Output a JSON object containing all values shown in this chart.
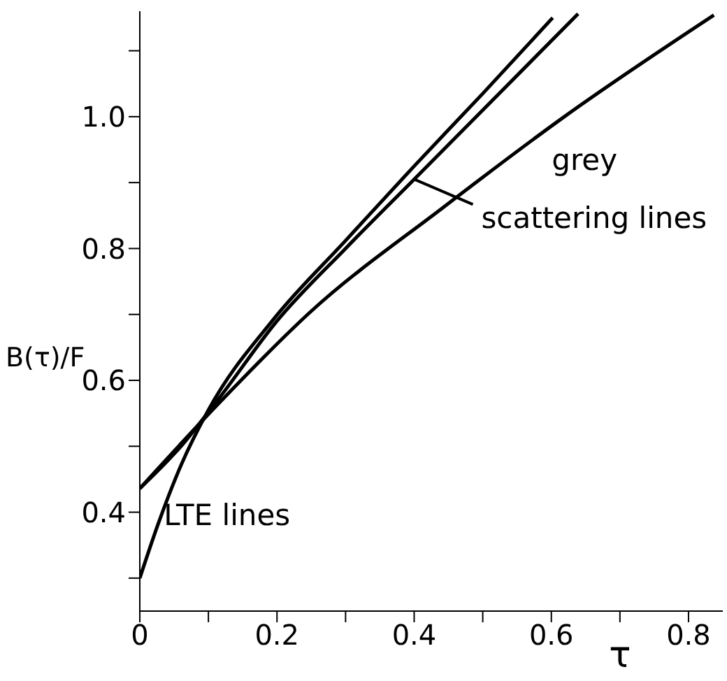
{
  "chart_data": {
    "type": "line",
    "xlabel": "τ",
    "ylabel": "B(τ)/F",
    "xlim": [
      0,
      0.85
    ],
    "ylim": [
      0.25,
      1.16
    ],
    "xticks": [
      0,
      {
        "value": 0.1,
        "label": null
      },
      0.2,
      {
        "value": 0.3,
        "label": null
      },
      0.4,
      {
        "value": 0.5,
        "label": null
      },
      0.6,
      {
        "value": 0.7,
        "label": null
      },
      0.8
    ],
    "yticks": [
      {
        "value": 0.3,
        "label": null
      },
      0.4,
      {
        "value": 0.5,
        "label": null
      },
      0.6,
      {
        "value": 0.7,
        "label": null
      },
      0.8,
      {
        "value": 0.9,
        "label": null
      },
      {
        "value": 1.0,
        "label": "1.0"
      },
      {
        "value": 1.1,
        "label": null
      }
    ],
    "grid": false,
    "marker": "none",
    "line_style": "solid",
    "annotations": [
      {
        "text": "grey",
        "x": 0.619,
        "y": 1.0
      },
      {
        "text": "scattering lines",
        "x": 0.4,
        "y": 0.905
      },
      {
        "text": "LTE lines",
        "x": 0.035,
        "y": 0.38
      }
    ],
    "series": [
      {
        "color": "#000000",
        "x": [
          0,
          0.115,
          0.25,
          0.442,
          0.619,
          0.837
        ],
        "values": [
          0.436,
          0.565,
          0.705,
          0.862,
          1.0,
          1.154
        ]
      },
      {
        "color": "#000000",
        "x": [
          0,
          0.06,
          0.115,
          0.2,
          0.3,
          0.4,
          0.5,
          0.639
        ],
        "values": [
          0.436,
          0.5,
          0.572,
          0.69,
          0.8,
          0.905,
          1.01,
          1.156
        ]
      },
      {
        "color": "#000000",
        "x": [
          0,
          0.026,
          0.06,
          0.1,
          0.196,
          0.3,
          0.4,
          0.5,
          0.602
        ],
        "values": [
          0.3,
          0.38,
          0.471,
          0.555,
          0.694,
          0.812,
          0.925,
          1.035,
          1.15
        ]
      }
    ]
  }
}
